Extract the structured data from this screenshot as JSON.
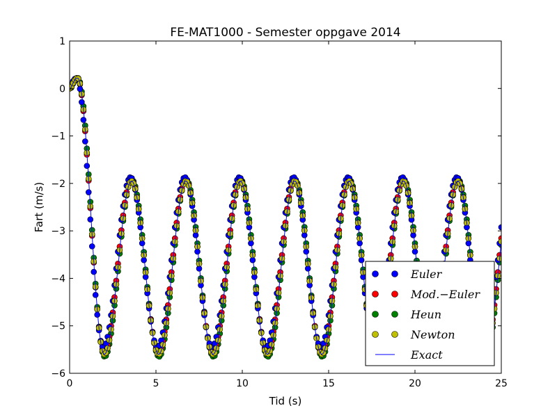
{
  "chart_data": {
    "type": "scatter",
    "title": "FE-MAT1000 - Semester oppgave 2014",
    "xlabel": "Tid (s)",
    "ylabel": "Fart (m/s)",
    "xlim": [
      0,
      25
    ],
    "ylim": [
      -6,
      1
    ],
    "xticks": [
      "0",
      "5",
      "10",
      "15",
      "20",
      "25"
    ],
    "yticks": [
      "1",
      "0",
      "−1",
      "−2",
      "−3",
      "−4",
      "−5",
      "−6"
    ],
    "grid": false,
    "legend_position": "lower-right",
    "x_step": 0.1,
    "series": [
      {
        "name": "Euler",
        "color": "#0000ff",
        "marker": "circle",
        "min": -5.45,
        "max": -1.87,
        "period": 3.15,
        "phase": 0.0
      },
      {
        "name": "Mod.−Euler",
        "color": "#ff0000",
        "marker": "circle",
        "min": -5.55,
        "max": -1.92,
        "period": 3.15,
        "phase": 0.05
      },
      {
        "name": "Heun",
        "color": "#008000",
        "marker": "circle",
        "min": -5.65,
        "max": -1.92,
        "period": 3.15,
        "phase": 0.08
      },
      {
        "name": "Newton",
        "color": "#bfbf00",
        "marker": "circle",
        "min": -5.6,
        "max": -1.95,
        "period": 3.15,
        "phase": 0.06
      },
      {
        "name": "Exact",
        "color": "#0000ff",
        "marker": "line",
        "min": -5.6,
        "max": -1.95,
        "period": 3.15,
        "phase": 0.06
      }
    ],
    "initial": {
      "x": 0,
      "y": 0,
      "peak_x": 0.4,
      "peak_y": 0.22,
      "first_min_x": 1.95
    }
  }
}
